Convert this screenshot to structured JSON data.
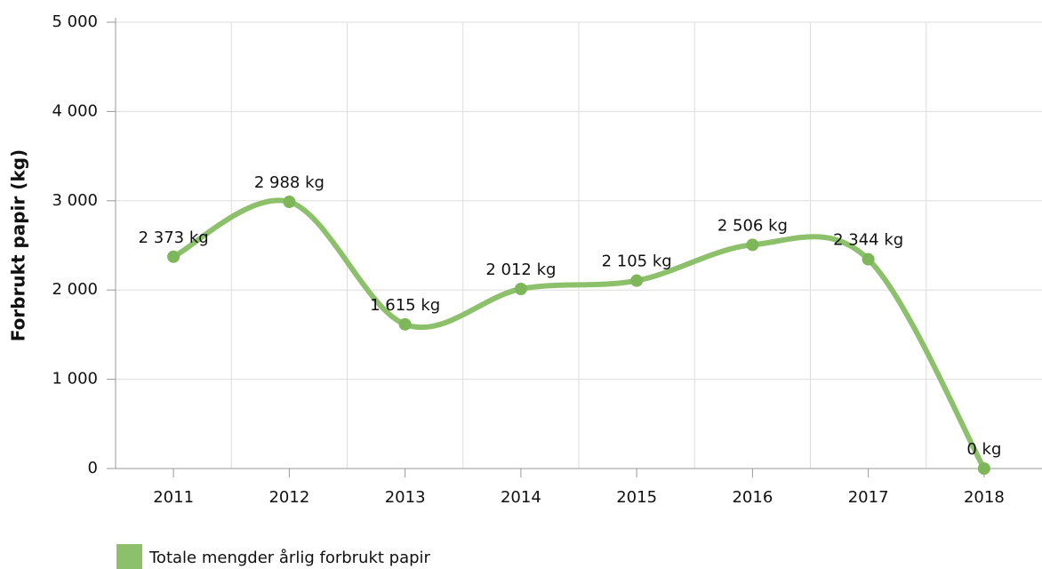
{
  "chart_data": {
    "type": "line",
    "smooth": true,
    "ylabel": "Forbrukt papir (kg)",
    "categories": [
      "2011",
      "2012",
      "2013",
      "2014",
      "2015",
      "2016",
      "2017",
      "2018"
    ],
    "series": [
      {
        "name": "Totale mengder årlig forbrukt papir",
        "color": "#8cc06b",
        "values": [
          2373,
          2988,
          1615,
          2012,
          2105,
          2506,
          2344,
          0
        ],
        "value_labels": [
          "2 373 kg",
          "2 988 kg",
          "1 615 kg",
          "2 012 kg",
          "2 105 kg",
          "2 506 kg",
          "2 344 kg",
          "0 kg"
        ]
      }
    ],
    "ylim": [
      0,
      5000
    ],
    "yticks": [
      0,
      {
        "value": 1000,
        "label": "1 000"
      },
      {
        "value": 2000,
        "label": "2 000"
      },
      {
        "value": 3000,
        "label": "3 000"
      },
      {
        "value": 4000,
        "label": "4 000"
      },
      {
        "value": 5000,
        "label": "5 000"
      }
    ],
    "grid": true,
    "legend": "bottom-left"
  }
}
